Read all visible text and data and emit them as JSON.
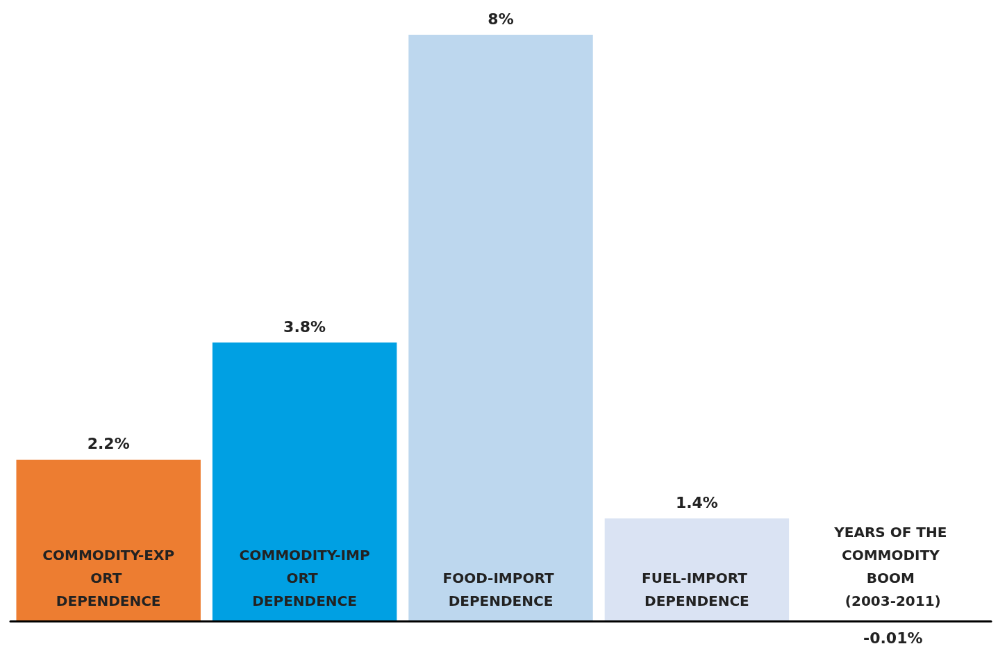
{
  "chart_data": {
    "type": "bar",
    "categories": [
      "COMMODITY-EXPORT DEPENDENCE",
      "COMMODITY-IMPORT DEPENDENCE",
      "FOOD-IMPORT DEPENDENCE",
      "FUEL-IMPORT DEPENDENCE",
      "YEARS OF THE COMMODITY BOOM (2003-2011)"
    ],
    "values": [
      2.2,
      3.8,
      8,
      1.4,
      -0.01
    ],
    "colors": [
      "#ed7d31",
      "#00a0e3",
      "#bdd7ee",
      "#dae3f3",
      "#bfbfbf"
    ],
    "value_labels": [
      "2.2%",
      "3.8%",
      "8%",
      "1.4%",
      "-0.01%"
    ]
  }
}
